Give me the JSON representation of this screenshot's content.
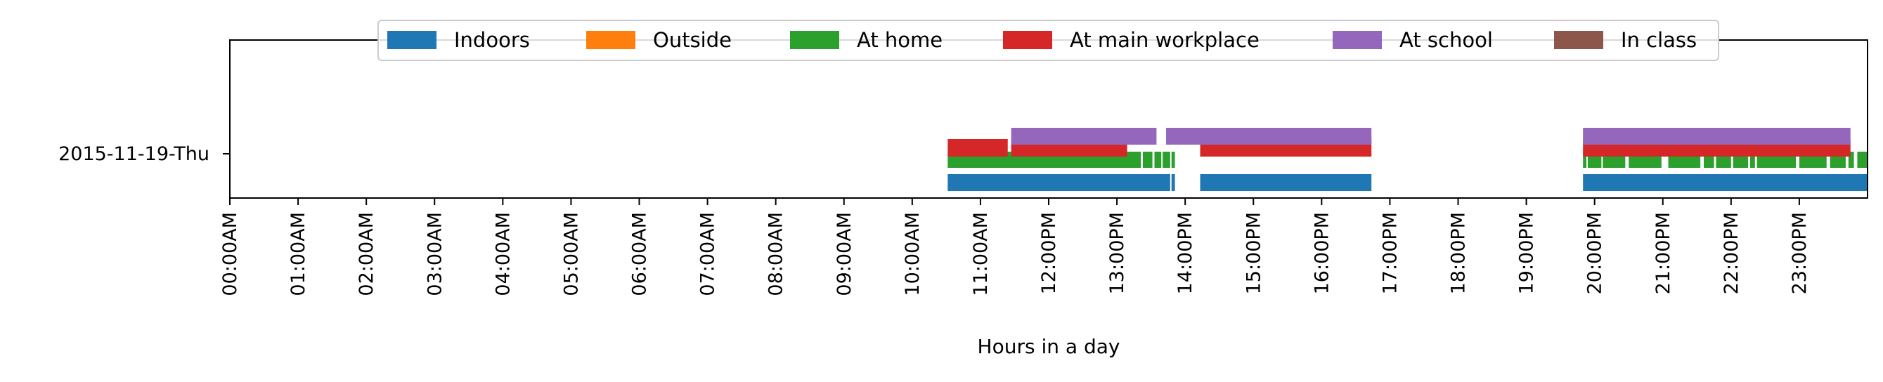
{
  "chart_data": {
    "type": "timeline",
    "title": "",
    "xlabel": "Hours in a day",
    "ylabel": "",
    "day_label": "2015-11-19-Thu",
    "x_unit": "hour of day",
    "xlim": [
      0,
      24
    ],
    "x_ticks": [
      0,
      1,
      2,
      3,
      4,
      5,
      6,
      7,
      8,
      9,
      10,
      11,
      12,
      13,
      14,
      15,
      16,
      17,
      18,
      19,
      20,
      21,
      22,
      23
    ],
    "x_tick_labels": [
      "00:00AM",
      "01:00AM",
      "02:00AM",
      "03:00AM",
      "04:00AM",
      "05:00AM",
      "06:00AM",
      "07:00AM",
      "08:00AM",
      "09:00AM",
      "10:00AM",
      "11:00AM",
      "12:00PM",
      "13:00PM",
      "14:00PM",
      "15:00PM",
      "16:00PM",
      "17:00PM",
      "18:00PM",
      "19:00PM",
      "20:00PM",
      "21:00PM",
      "22:00PM",
      "23:00PM"
    ],
    "legend_position": "top-center",
    "grid": false,
    "series": [
      {
        "name": "Indoors",
        "color": "#1f77b4",
        "intervals": [
          [
            10.52,
            13.78
          ],
          [
            13.8,
            13.85
          ],
          [
            14.22,
            16.73
          ],
          [
            19.83,
            24.0
          ]
        ]
      },
      {
        "name": "Outside",
        "color": "#ff7f0e",
        "intervals": []
      },
      {
        "name": "At home",
        "color": "#2ca02c",
        "intervals": [
          [
            10.52,
            13.35
          ],
          [
            13.38,
            13.52
          ],
          [
            13.55,
            13.65
          ],
          [
            13.67,
            13.78
          ],
          [
            13.8,
            13.85
          ],
          [
            19.83,
            19.88
          ],
          [
            19.9,
            20.1
          ],
          [
            20.12,
            20.45
          ],
          [
            20.5,
            20.98
          ],
          [
            21.08,
            21.55
          ],
          [
            21.6,
            21.75
          ],
          [
            21.78,
            22.0
          ],
          [
            22.03,
            22.25
          ],
          [
            22.28,
            22.35
          ],
          [
            22.38,
            22.95
          ],
          [
            23.0,
            23.4
          ],
          [
            23.45,
            23.68
          ],
          [
            23.72,
            23.8
          ],
          [
            23.85,
            24.0
          ]
        ]
      },
      {
        "name": "At main workplace",
        "color": "#d62728",
        "intervals": [
          [
            10.52,
            11.4
          ],
          [
            11.45,
            13.15
          ],
          [
            14.22,
            16.73
          ],
          [
            19.83,
            23.75
          ]
        ]
      },
      {
        "name": "At school",
        "color": "#9467bd",
        "intervals": [
          [
            11.45,
            13.58
          ],
          [
            13.72,
            16.73
          ],
          [
            19.83,
            23.75
          ]
        ]
      },
      {
        "name": "In class",
        "color": "#8c564b",
        "intervals": []
      }
    ]
  }
}
